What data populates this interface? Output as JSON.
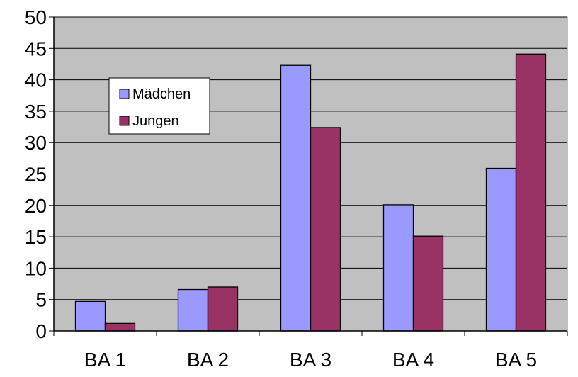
{
  "chart_data": {
    "type": "bar",
    "categories": [
      "BA 1",
      "BA 2",
      "BA 3",
      "BA 4",
      "BA 5"
    ],
    "series": [
      {
        "name": "Mädchen",
        "color": "#9999ff",
        "values": [
          4.7,
          6.6,
          42.3,
          20.1,
          25.9
        ]
      },
      {
        "name": "Jungen",
        "color": "#993366",
        "values": [
          1.2,
          7.0,
          32.4,
          15.1,
          44.1
        ]
      }
    ],
    "yticks": [
      "0",
      "5",
      "10",
      "15",
      "20",
      "25",
      "30",
      "35",
      "40",
      "45",
      "50"
    ],
    "ylim": [
      0,
      50
    ],
    "grid": true,
    "plot_background": "#c0c0c0",
    "legend_position": "top-left",
    "title": "",
    "xlabel": "",
    "ylabel": ""
  }
}
